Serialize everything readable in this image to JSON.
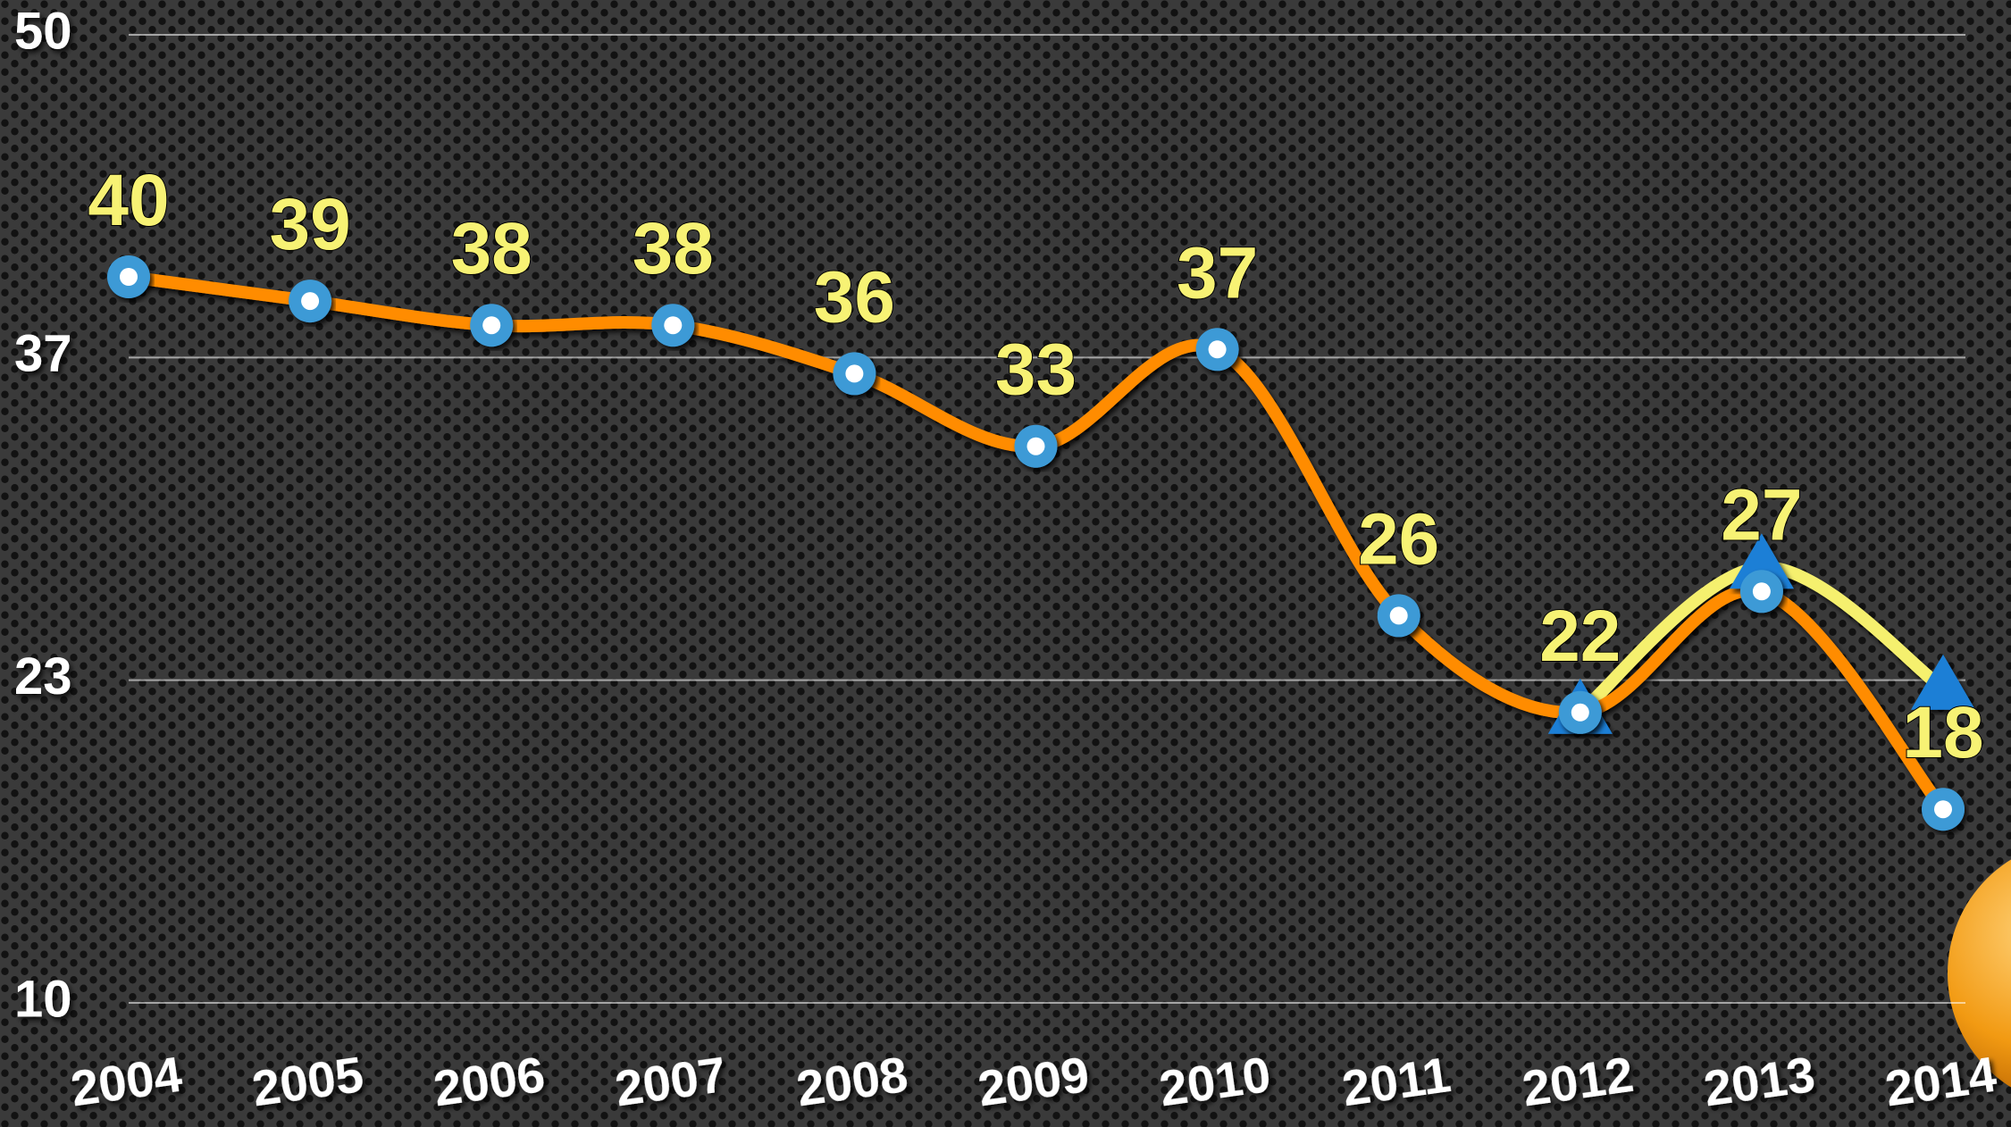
{
  "chart_data": {
    "type": "line",
    "categories": [
      "2004",
      "2005",
      "2006",
      "2007",
      "2008",
      "2009",
      "2010",
      "2011",
      "2012",
      "2013",
      "2014"
    ],
    "series": [
      {
        "color": "#3d9ad6",
        "line_color": "#ff8c00",
        "marker": "circle",
        "labels": true,
        "values": [
          40,
          39,
          38,
          38,
          36,
          33,
          37,
          26,
          22,
          27,
          18
        ]
      },
      {
        "color": "#1f7fd6",
        "line_color": "#f5f06e",
        "marker": "triangle",
        "labels": false,
        "values": [
          null,
          null,
          null,
          null,
          null,
          null,
          null,
          null,
          22,
          28,
          23
        ]
      }
    ],
    "ylim": [
      10,
      50
    ],
    "yticks": [
      10,
      {
        "value": 23.333,
        "label": "23"
      },
      {
        "value": 36.667,
        "label": "37"
      },
      50
    ],
    "grid": true
  }
}
